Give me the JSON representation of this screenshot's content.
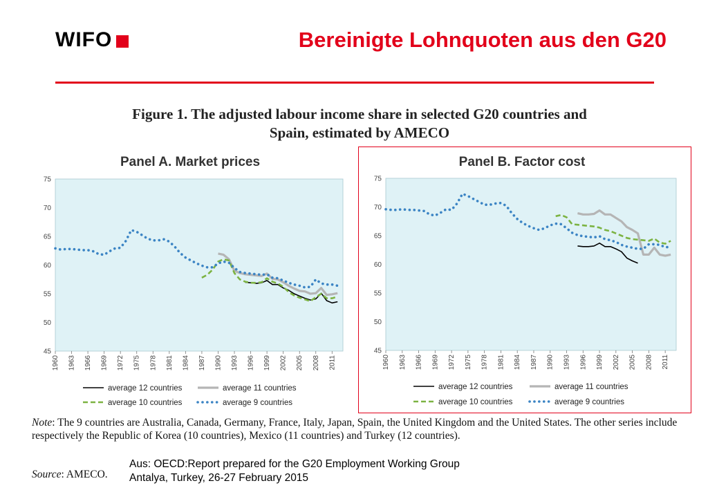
{
  "header": {
    "logo_text": "WIFO",
    "slide_title": "Bereinigte Lohnquoten aus den G20"
  },
  "figure": {
    "title_line1": "Figure 1. The adjusted labour income share in selected G20 countries and",
    "title_line2": "Spain, estimated by AMECO"
  },
  "footer": {
    "note_label": "Note",
    "note_text": ": The 9 countries are Australia, Canada, Germany, France, Italy, Japan, Spain, the United Kingdom and the United States. The other series include respectively the Republic of Korea (10 countries), Mexico (11 countries) and Turkey (12 countries).",
    "source_label": "Source",
    "source_text": ": AMECO.",
    "caption_line1": "Aus: OECD:Report prepared for the G20 Employment Working Group",
    "caption_line2": "Antalya, Turkey, 26-27 February 2015"
  },
  "colors": {
    "accent": "#e2001a",
    "plot_bg": "#dff2f6",
    "s12": "#000000",
    "s11": "#b5b5b5",
    "s10": "#7cb342",
    "s9": "#3b84c4"
  },
  "chart_data": [
    {
      "type": "line",
      "title": "Panel A. Market prices",
      "xlabel": "",
      "ylabel": "",
      "xlim": [
        1960,
        2013
      ],
      "ylim": [
        45,
        75
      ],
      "yticks": [
        45,
        50,
        55,
        60,
        65,
        70,
        75
      ],
      "xticks": [
        1960,
        1963,
        1966,
        1969,
        1972,
        1975,
        1978,
        1981,
        1984,
        1987,
        1990,
        1993,
        1996,
        1999,
        2002,
        2005,
        2008,
        2011
      ],
      "grid": false,
      "legend": "bottom",
      "series": [
        {
          "name": "average 12 countries",
          "x": [
            1995,
            1996,
            1997,
            1998,
            1999,
            2000,
            2001,
            2002,
            2003,
            2004,
            2005,
            2006,
            2007,
            2008,
            2009,
            2010,
            2011,
            2012
          ],
          "values": [
            57.0,
            56.9,
            56.8,
            56.9,
            57.3,
            56.6,
            56.6,
            56.0,
            55.6,
            55.0,
            54.6,
            54.2,
            53.9,
            54.1,
            55.1,
            53.8,
            53.4,
            53.6
          ]
        },
        {
          "name": "average 11 countries",
          "x": [
            1990,
            1991,
            1992,
            1993,
            1994,
            1995,
            1996,
            1997,
            1998,
            1999,
            2000,
            2001,
            2002,
            2003,
            2004,
            2005,
            2006,
            2007,
            2008,
            2009,
            2010,
            2011,
            2012
          ],
          "values": [
            62.0,
            61.8,
            61.0,
            59.0,
            58.6,
            58.4,
            58.3,
            58.2,
            58.1,
            58.5,
            57.6,
            57.5,
            57.0,
            56.4,
            55.9,
            55.5,
            55.4,
            55.0,
            55.1,
            56.0,
            54.8,
            54.9,
            55.1
          ]
        },
        {
          "name": "average 10 countries",
          "x": [
            1987,
            1988,
            1989,
            1990,
            1991,
            1992,
            1993,
            1994,
            1995,
            1996,
            1997,
            1998,
            1999,
            2000,
            2001,
            2002,
            2003,
            2004,
            2005,
            2006,
            2007,
            2008,
            2009,
            2010,
            2011,
            2012
          ],
          "values": [
            57.8,
            58.3,
            59.2,
            60.6,
            61.0,
            60.8,
            58.6,
            57.5,
            57.1,
            56.9,
            56.9,
            57.0,
            57.7,
            57.1,
            56.8,
            56.2,
            55.3,
            54.7,
            54.3,
            54.0,
            53.7,
            54.4,
            55.0,
            54.2,
            54.2,
            54.5
          ]
        },
        {
          "name": "average 9 countries",
          "x": [
            1960,
            1961,
            1962,
            1963,
            1964,
            1965,
            1966,
            1967,
            1968,
            1969,
            1970,
            1971,
            1972,
            1973,
            1974,
            1975,
            1976,
            1977,
            1978,
            1979,
            1980,
            1981,
            1982,
            1983,
            1984,
            1985,
            1986,
            1987,
            1988,
            1989,
            1990,
            1991,
            1992,
            1993,
            1994,
            1995,
            1996,
            1997,
            1998,
            1999,
            2000,
            2001,
            2002,
            2003,
            2004,
            2005,
            2006,
            2007,
            2008,
            2009,
            2010,
            2011,
            2012
          ],
          "values": [
            62.9,
            62.7,
            62.8,
            62.8,
            62.7,
            62.6,
            62.6,
            62.4,
            61.9,
            61.8,
            62.4,
            62.9,
            63.0,
            64.2,
            66.1,
            65.8,
            65.2,
            64.6,
            64.3,
            64.3,
            64.5,
            64.1,
            63.2,
            62.1,
            61.3,
            60.8,
            60.3,
            59.9,
            59.6,
            59.6,
            60.3,
            60.6,
            60.4,
            59.5,
            58.8,
            58.6,
            58.5,
            58.4,
            58.3,
            58.4,
            57.8,
            57.7,
            57.3,
            56.9,
            56.6,
            56.4,
            56.1,
            56.2,
            57.5,
            56.8,
            56.6,
            56.6,
            56.4
          ]
        }
      ]
    },
    {
      "type": "line",
      "title": "Panel B. Factor cost",
      "xlabel": "",
      "ylabel": "",
      "xlim": [
        1960,
        2013
      ],
      "ylim": [
        45,
        75
      ],
      "yticks": [
        45,
        50,
        55,
        60,
        65,
        70,
        75
      ],
      "xticks": [
        1960,
        1963,
        1966,
        1969,
        1972,
        1975,
        1978,
        1981,
        1984,
        1987,
        1990,
        1993,
        1996,
        1999,
        2002,
        2005,
        2008,
        2011
      ],
      "grid": false,
      "legend": "bottom",
      "series": [
        {
          "name": "average 12 countries",
          "x": [
            1995,
            1996,
            1997,
            1998,
            1999,
            2000,
            2001,
            2002,
            2003,
            2004,
            2005,
            2006
          ],
          "values": [
            63.2,
            63.1,
            63.1,
            63.2,
            63.7,
            63.1,
            63.1,
            62.7,
            62.2,
            61.1,
            60.6,
            60.2
          ]
        },
        {
          "name": "average 11 countries",
          "x": [
            1995,
            1996,
            1997,
            1998,
            1999,
            2000,
            2001,
            2002,
            2003,
            2004,
            2005,
            2006,
            2007,
            2008,
            2009,
            2010,
            2011,
            2012
          ],
          "values": [
            68.9,
            68.7,
            68.7,
            68.8,
            69.4,
            68.7,
            68.7,
            68.1,
            67.5,
            66.5,
            66.0,
            65.4,
            61.7,
            61.7,
            62.9,
            61.7,
            61.5,
            61.7
          ]
        },
        {
          "name": "average 10 countries",
          "x": [
            1991,
            1992,
            1993,
            1994,
            1995,
            1996,
            1997,
            1998,
            1999,
            2000,
            2001,
            2002,
            2003,
            2004,
            2005,
            2006,
            2007,
            2008,
            2009,
            2010,
            2011,
            2012
          ],
          "values": [
            68.4,
            68.6,
            68.2,
            67.0,
            66.9,
            66.8,
            66.7,
            66.6,
            66.4,
            66.0,
            65.8,
            65.4,
            65.0,
            64.6,
            64.4,
            64.3,
            64.2,
            64.1,
            64.5,
            63.8,
            63.6,
            64.1
          ]
        },
        {
          "name": "average 9 countries",
          "x": [
            1960,
            1961,
            1962,
            1963,
            1964,
            1965,
            1966,
            1967,
            1968,
            1969,
            1970,
            1971,
            1972,
            1973,
            1974,
            1975,
            1976,
            1977,
            1978,
            1979,
            1980,
            1981,
            1982,
            1983,
            1984,
            1985,
            1986,
            1987,
            1988,
            1989,
            1990,
            1991,
            1992,
            1993,
            1994,
            1995,
            1996,
            1997,
            1998,
            1999,
            2000,
            2001,
            2002,
            2003,
            2004,
            2005,
            2006,
            2007,
            2008,
            2009,
            2010,
            2011,
            2012
          ],
          "values": [
            69.6,
            69.5,
            69.5,
            69.6,
            69.5,
            69.5,
            69.4,
            69.3,
            68.7,
            68.5,
            69.0,
            69.6,
            69.5,
            70.6,
            72.3,
            71.9,
            71.4,
            70.9,
            70.4,
            70.4,
            70.6,
            70.7,
            70.2,
            68.9,
            67.9,
            67.2,
            66.7,
            66.3,
            66.0,
            66.3,
            66.8,
            67.1,
            67.0,
            66.3,
            65.5,
            65.1,
            64.9,
            64.8,
            64.7,
            64.9,
            64.4,
            64.2,
            63.9,
            63.4,
            63.1,
            62.9,
            62.7,
            62.7,
            63.5,
            63.5,
            63.4,
            63.0,
            63.0
          ]
        }
      ]
    }
  ]
}
